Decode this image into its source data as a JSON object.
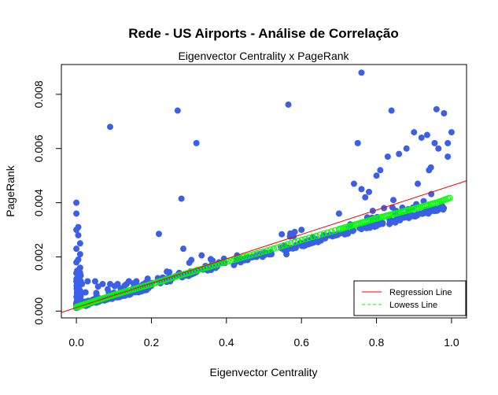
{
  "chart_data": {
    "type": "scatter",
    "title": "Rede - US Airports - Análise de Correlação",
    "subtitle": "Eigenvector Centrality x PageRank",
    "xlabel": "Eigenvector Centrality",
    "ylabel": "PageRank",
    "xlim": [
      -0.04,
      1.04
    ],
    "ylim": [
      -0.00025,
      0.0091
    ],
    "x_ticks": [
      0.0,
      0.2,
      0.4,
      0.6,
      0.8,
      1.0
    ],
    "x_tick_labels": [
      "0.0",
      "0.2",
      "0.4",
      "0.6",
      "0.8",
      "1.0"
    ],
    "y_ticks": [
      0.0,
      0.002,
      0.004,
      0.006,
      0.008
    ],
    "y_tick_labels": [
      "0.000",
      "0.002",
      "0.004",
      "0.006",
      "0.008"
    ],
    "grid": false,
    "legend": {
      "position": "bottom-right",
      "entries": [
        {
          "label": "Regression Line",
          "color": "#ff0000",
          "style": "solid"
        },
        {
          "label": "Lowess Line",
          "color": "#00ff00",
          "style": "dashed"
        }
      ]
    },
    "colors": {
      "points": "#3b5fe6",
      "regression": "#ff0000",
      "lowess": "#00ff00"
    },
    "regression_line": {
      "intercept": 0.00013,
      "slope": 0.0045
    },
    "outliers": [
      [
        0.0,
        0.004
      ],
      [
        0.0,
        0.0036
      ],
      [
        0.005,
        0.0031
      ],
      [
        0.0,
        0.003
      ],
      [
        0.005,
        0.0028
      ],
      [
        0.01,
        0.0025
      ],
      [
        0.0,
        0.0023
      ],
      [
        0.01,
        0.0021
      ],
      [
        0.005,
        0.0019
      ],
      [
        0.0,
        0.0018
      ],
      [
        0.01,
        0.0016
      ],
      [
        0.005,
        0.0015
      ],
      [
        0.0,
        0.0014
      ],
      [
        0.01,
        0.0013
      ],
      [
        0.005,
        0.0012
      ],
      [
        0.0,
        0.0011
      ],
      [
        0.015,
        0.001
      ],
      [
        0.03,
        0.0011
      ],
      [
        0.05,
        0.0011
      ],
      [
        0.07,
        0.001
      ],
      [
        0.09,
        0.001
      ],
      [
        0.11,
        0.001
      ],
      [
        0.14,
        0.0011
      ],
      [
        0.16,
        0.0011
      ],
      [
        0.19,
        0.0012
      ],
      [
        0.22,
        0.00285
      ],
      [
        0.25,
        0.0011
      ],
      [
        0.27,
        0.0074
      ],
      [
        0.28,
        0.00415
      ],
      [
        0.285,
        0.0023
      ],
      [
        0.32,
        0.0062
      ],
      [
        0.35,
        0.0015
      ],
      [
        0.38,
        0.0018
      ],
      [
        0.42,
        0.0017
      ],
      [
        0.45,
        0.0019
      ],
      [
        0.48,
        0.002
      ],
      [
        0.52,
        0.0021
      ],
      [
        0.56,
        0.0021
      ],
      [
        0.565,
        0.00762
      ],
      [
        0.6,
        0.003
      ],
      [
        0.63,
        0.0027
      ],
      [
        0.66,
        0.0028
      ],
      [
        0.7,
        0.0036
      ],
      [
        0.73,
        0.0032
      ],
      [
        0.74,
        0.0047
      ],
      [
        0.75,
        0.0062
      ],
      [
        0.76,
        0.0045
      ],
      [
        0.77,
        0.0042
      ],
      [
        0.78,
        0.0044
      ],
      [
        0.79,
        0.0037
      ],
      [
        0.8,
        0.005
      ],
      [
        0.81,
        0.0052
      ],
      [
        0.82,
        0.0038
      ],
      [
        0.83,
        0.0057
      ],
      [
        0.84,
        0.0074
      ],
      [
        0.845,
        0.0041
      ],
      [
        0.86,
        0.0058
      ],
      [
        0.88,
        0.006
      ],
      [
        0.9,
        0.0066
      ],
      [
        0.91,
        0.0047
      ],
      [
        0.92,
        0.0064
      ],
      [
        0.935,
        0.0065
      ],
      [
        0.94,
        0.0052
      ],
      [
        0.945,
        0.0053
      ],
      [
        0.955,
        0.0062
      ],
      [
        0.96,
        0.00745
      ],
      [
        0.965,
        0.006
      ],
      [
        0.98,
        0.0073
      ],
      [
        0.99,
        0.0062
      ],
      [
        1.0,
        0.0066
      ],
      [
        0.09,
        0.0068
      ],
      [
        0.76,
        0.0088
      ],
      [
        0.99,
        0.0057
      ]
    ],
    "lowess_sample_x": [
      0.0,
      0.1,
      0.2,
      0.3,
      0.4,
      0.5,
      0.6,
      0.7,
      0.8,
      0.9,
      0.96,
      1.0
    ],
    "lowess_sample_y": [
      0.00015,
      0.0006,
      0.001,
      0.00142,
      0.00182,
      0.0022,
      0.00262,
      0.00302,
      0.00342,
      0.00378,
      0.004,
      0.0042
    ]
  }
}
